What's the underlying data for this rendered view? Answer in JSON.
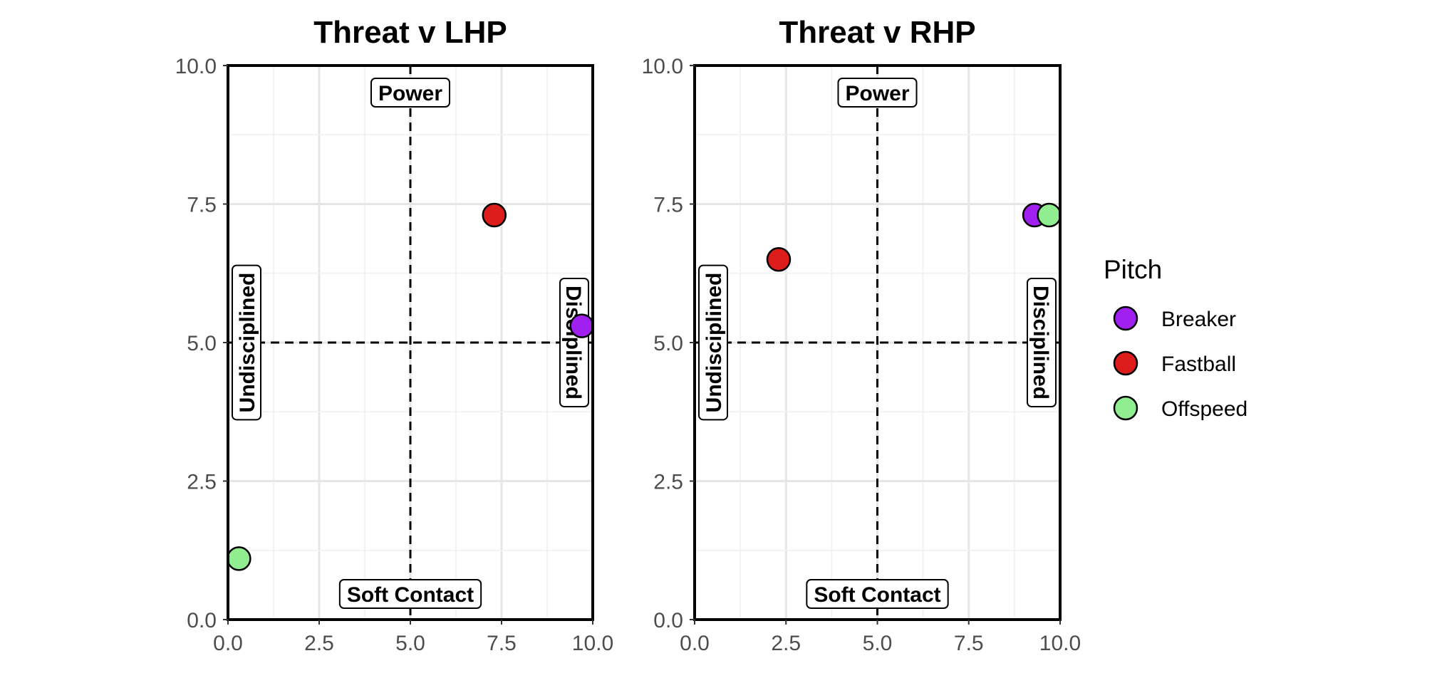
{
  "chart_data": [
    {
      "type": "scatter",
      "title": "Threat v LHP",
      "xlabel": "",
      "ylabel": "",
      "xlim": [
        0,
        10
      ],
      "ylim": [
        0,
        10
      ],
      "x_ticks": [
        "0.0",
        "2.5",
        "5.0",
        "7.5",
        "10.0"
      ],
      "y_ticks": [
        "0.0",
        "2.5",
        "5.0",
        "7.5",
        "10.0"
      ],
      "grid": true,
      "reference_lines": {
        "x": 5,
        "y": 5,
        "style": "dashed"
      },
      "quadrant_labels": {
        "top": "Power",
        "bottom": "Soft Contact",
        "left": "Undisciplined",
        "right": "Disciplined"
      },
      "points": [
        {
          "pitch": "Fastball",
          "x": 7.3,
          "y": 7.3
        },
        {
          "pitch": "Breaker",
          "x": 9.7,
          "y": 5.3
        },
        {
          "pitch": "Offspeed",
          "x": 0.3,
          "y": 1.1
        }
      ]
    },
    {
      "type": "scatter",
      "title": "Threat v RHP",
      "xlabel": "",
      "ylabel": "",
      "xlim": [
        0,
        10
      ],
      "ylim": [
        0,
        10
      ],
      "x_ticks": [
        "0.0",
        "2.5",
        "5.0",
        "7.5",
        "10.0"
      ],
      "y_ticks": [
        "0.0",
        "2.5",
        "5.0",
        "7.5",
        "10.0"
      ],
      "grid": true,
      "reference_lines": {
        "x": 5,
        "y": 5,
        "style": "dashed"
      },
      "quadrant_labels": {
        "top": "Power",
        "bottom": "Soft Contact",
        "left": "Undisciplined",
        "right": "Disciplined"
      },
      "points": [
        {
          "pitch": "Fastball",
          "x": 2.3,
          "y": 6.5
        },
        {
          "pitch": "Breaker",
          "x": 9.3,
          "y": 7.3
        },
        {
          "pitch": "Offspeed",
          "x": 9.7,
          "y": 7.3
        }
      ]
    }
  ],
  "legend": {
    "title": "Pitch",
    "placement": "right",
    "items": [
      {
        "label": "Breaker",
        "color": "#a020f0"
      },
      {
        "label": "Fastball",
        "color": "#dd1c1c"
      },
      {
        "label": "Offspeed",
        "color": "#90ee90"
      }
    ]
  }
}
